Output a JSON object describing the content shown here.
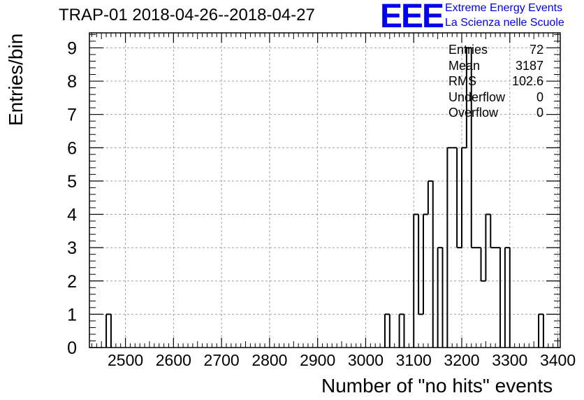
{
  "colors": {
    "accent": "#0000ee",
    "axis": "#000000",
    "grid": "#a0a0a0",
    "line": "#000000"
  },
  "header": {
    "title": "TRAP-01 2018-04-26--2018-04-27"
  },
  "logo": {
    "mark": "EEE",
    "line1": "Extreme Energy Events",
    "line2": "La Scienza nelle Scuole"
  },
  "stats": [
    {
      "label": "Entries",
      "value": "72"
    },
    {
      "label": "Mean",
      "value": "3187"
    },
    {
      "label": "RMS",
      "value": "102.6"
    },
    {
      "label": "Underflow",
      "value": "0"
    },
    {
      "label": "Overflow",
      "value": "0"
    }
  ],
  "chart_data": {
    "type": "bar",
    "style": "step-histogram",
    "xlabel": "Number of \"no hits\" events",
    "ylabel": "Entries/bin",
    "xlim": [
      2425,
      3405
    ],
    "ylim": [
      0,
      9.45
    ],
    "xticks": [
      2500,
      2600,
      2700,
      2800,
      2900,
      3000,
      3100,
      3200,
      3300,
      3400
    ],
    "yticks": [
      0,
      1,
      2,
      3,
      4,
      5,
      6,
      7,
      8,
      9
    ],
    "grid": true,
    "bin_width": 10,
    "bins": [
      {
        "x": 2465,
        "y": 1
      },
      {
        "x": 3045,
        "y": 1
      },
      {
        "x": 3075,
        "y": 1
      },
      {
        "x": 3105,
        "y": 4
      },
      {
        "x": 3115,
        "y": 1
      },
      {
        "x": 3125,
        "y": 4
      },
      {
        "x": 3135,
        "y": 5
      },
      {
        "x": 3155,
        "y": 3
      },
      {
        "x": 3165,
        "y": 0
      },
      {
        "x": 3175,
        "y": 6
      },
      {
        "x": 3185,
        "y": 6
      },
      {
        "x": 3195,
        "y": 3
      },
      {
        "x": 3205,
        "y": 6
      },
      {
        "x": 3215,
        "y": 9
      },
      {
        "x": 3225,
        "y": 3
      },
      {
        "x": 3235,
        "y": 3
      },
      {
        "x": 3245,
        "y": 2
      },
      {
        "x": 3255,
        "y": 4
      },
      {
        "x": 3265,
        "y": 3
      },
      {
        "x": 3275,
        "y": 3
      },
      {
        "x": 3285,
        "y": 0
      },
      {
        "x": 3295,
        "y": 3
      },
      {
        "x": 3365,
        "y": 1
      }
    ]
  }
}
